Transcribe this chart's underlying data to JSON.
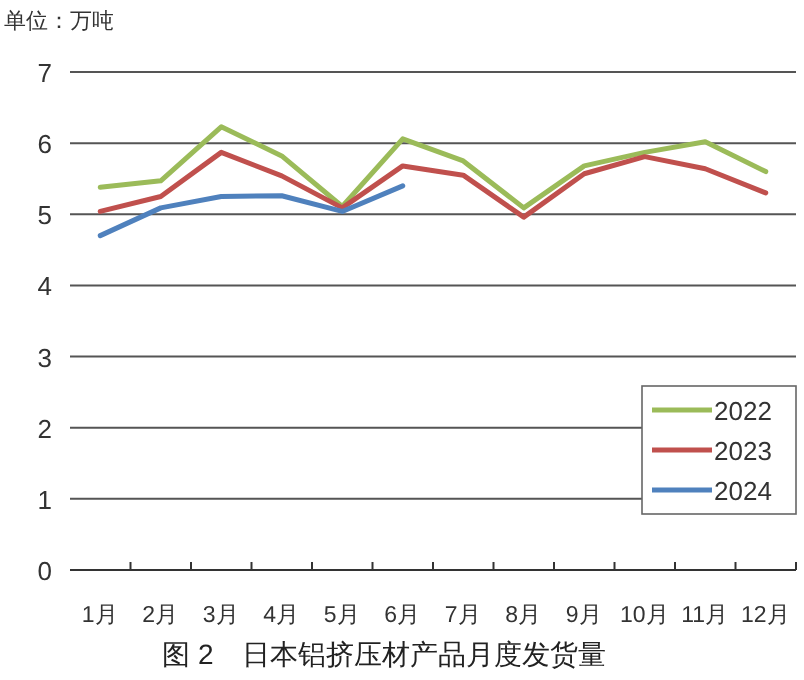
{
  "chart_data": {
    "type": "line",
    "title": "图 2　日本铝挤压材产品月度发货量",
    "ylabel": "单位：万吨",
    "categories": [
      "1月",
      "2月",
      "3月",
      "4月",
      "5月",
      "6月",
      "7月",
      "8月",
      "9月",
      "10月",
      "11月",
      "12月"
    ],
    "series": [
      {
        "name": "2022",
        "color": "#9bbb59",
        "values": [
          5.38,
          5.47,
          6.23,
          5.82,
          5.11,
          6.06,
          5.75,
          5.09,
          5.68,
          5.87,
          6.02,
          5.6
        ]
      },
      {
        "name": "2023",
        "color": "#c0504d",
        "values": [
          5.04,
          5.25,
          5.87,
          5.54,
          5.09,
          5.68,
          5.55,
          4.96,
          5.57,
          5.81,
          5.64,
          5.3
        ]
      },
      {
        "name": "2024",
        "color": "#4f81bd",
        "values": [
          4.7,
          5.09,
          5.25,
          5.26,
          5.04,
          5.4,
          null,
          null,
          null,
          null,
          null,
          null
        ]
      }
    ],
    "ylim": [
      0,
      7
    ],
    "yticks": [
      0,
      1,
      2,
      3,
      4,
      5,
      6,
      7
    ],
    "grid": "y",
    "legend": "bottom right",
    "marker": "none",
    "line_style": "solid"
  }
}
